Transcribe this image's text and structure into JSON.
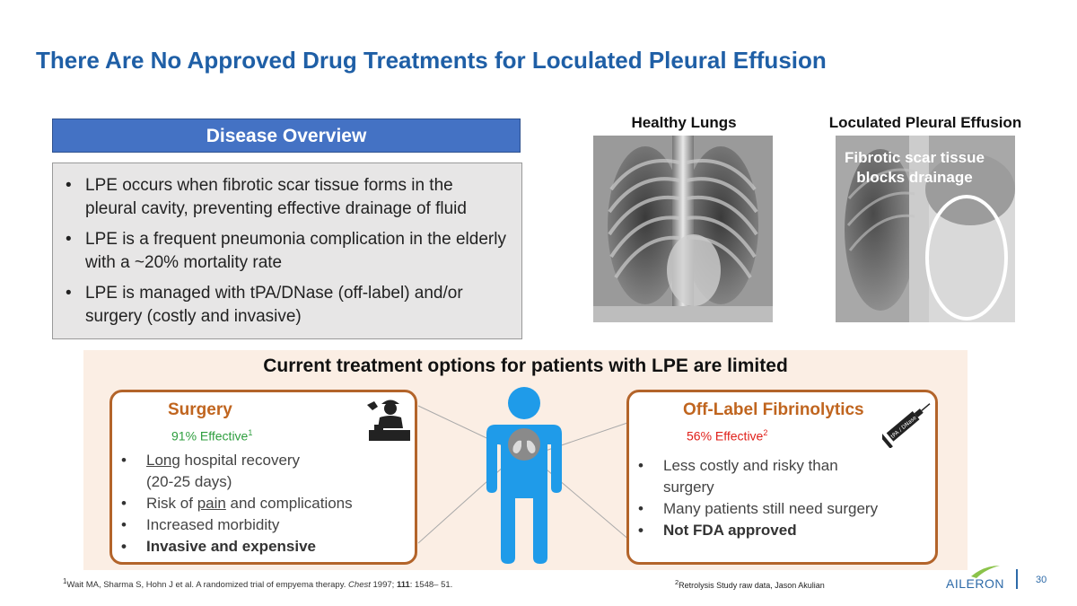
{
  "slide": {
    "title": "There Are No Approved Drug Treatments for Loculated Pleural Effusion",
    "page_number": "30"
  },
  "overview": {
    "header": "Disease Overview",
    "bullets": [
      "LPE occurs when fibrotic scar tissue forms in the pleural cavity, preventing effective drainage of fluid",
      "LPE is a frequent pneumonia complication in the elderly with a ~20% mortality rate",
      "LPE is managed with tPA/DNase (off-label) and/or surgery (costly and invasive)"
    ]
  },
  "images": {
    "healthy_label": "Healthy Lungs",
    "lpe_label": "Loculated Pleural Effusion",
    "lpe_overlay": "Fibrotic scar tissue blocks drainage"
  },
  "treatment": {
    "title": "Current treatment options for patients with LPE are limited",
    "surgery": {
      "title": "Surgery",
      "effective": "91% Effective",
      "effective_ref": "1",
      "bullet1_u": "Long",
      "bullet1_rest": " hospital recovery",
      "bullet1_line2": "(20-25 days)",
      "bullet2_pre": "Risk of ",
      "bullet2_u": "pain",
      "bullet2_rest": " and complications",
      "bullet3": "Increased morbidity",
      "bullet4": "Invasive and expensive"
    },
    "fibrinolytics": {
      "title": "Off-Label Fibrinolytics",
      "effective": "56% Effective",
      "effective_ref": "2",
      "bullets": [
        "Less costly and risky than surgery",
        "Many patients still need surgery",
        "Not FDA approved"
      ],
      "syringe_text": "tPA / DNase"
    }
  },
  "footnotes": {
    "f1_sup": "1",
    "f1_a": "Wait MA, Sharma S, Hohn J et   al. A randomized trial of empyema therapy. ",
    "f1_journal": "Chest",
    "f1_b": " 1997; ",
    "f1_vol": "111",
    "f1_c": ": 1548– 51.",
    "f2_sup": "2",
    "f2_text": "Retrolysis Study raw data, Jason Akulian"
  },
  "brand": {
    "logo_text": "AILERON",
    "colors": {
      "title": "#1f5fa6",
      "header_fill": "#4472c4",
      "card_border": "#b3642a",
      "card_title": "#c0651f",
      "surgery_effective": "#2e9e3e",
      "fib_effective": "#e0201a",
      "person": "#1f9be9",
      "panel": "#fbeee4"
    }
  },
  "icons": [
    "surgeon-icon",
    "syringe-icon",
    "person-icon",
    "lungs-icon",
    "aileron-logo-icon"
  ]
}
